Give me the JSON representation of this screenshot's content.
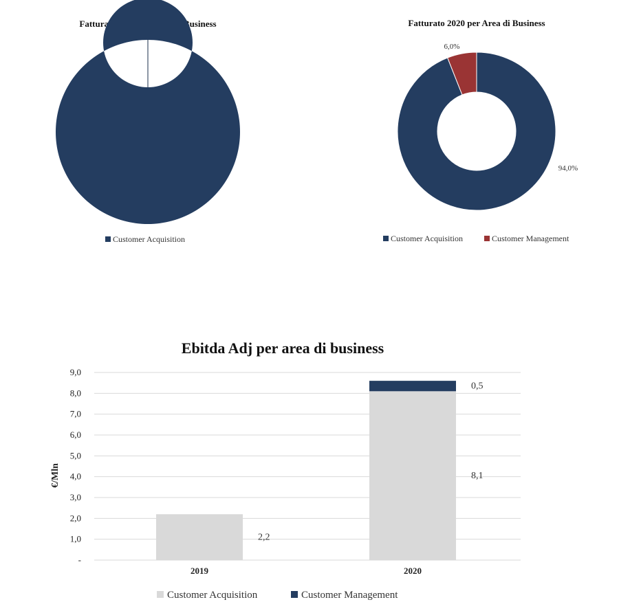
{
  "colors": {
    "acquisition": "#243d60",
    "management": "#9a3434",
    "bar_acquisition": "#d9d9d9",
    "bar_management": "#243d60",
    "grid": "#d9d9d9"
  },
  "chart_data": [
    {
      "type": "pie",
      "title": "Fatturato 2019 per Area di Business",
      "donut": true,
      "slices": [
        {
          "name": "Customer Acquisition",
          "value": 100,
          "label": ""
        }
      ],
      "legend": [
        "Customer Acquisition"
      ],
      "legend_position": "bottom"
    },
    {
      "type": "pie",
      "title": "Fatturato 2020 per Area di Business",
      "donut": true,
      "slices": [
        {
          "name": "Customer Acquisition",
          "value": 94.0,
          "label": "94,0%"
        },
        {
          "name": "Customer Management",
          "value": 6.0,
          "label": "6,0%"
        }
      ],
      "legend": [
        "Customer Acquisition",
        "Customer Management"
      ],
      "legend_position": "bottom"
    },
    {
      "type": "bar",
      "stacked": true,
      "title": "Ebitda Adj per area di business",
      "ylabel": "€/Mln",
      "xlabel": "",
      "categories": [
        "2019",
        "2020"
      ],
      "series": [
        {
          "name": "Customer Acquisition",
          "values": [
            2.2,
            8.1
          ],
          "labels": [
            "2,2",
            "8,1"
          ]
        },
        {
          "name": "Customer Management",
          "values": [
            0,
            0.5
          ],
          "labels": [
            "",
            "0,5"
          ]
        }
      ],
      "ylim": [
        0,
        9
      ],
      "yticks": [
        "-",
        "1,0",
        "2,0",
        "3,0",
        "4,0",
        "5,0",
        "6,0",
        "7,0",
        "8,0",
        "9,0"
      ],
      "grid": true,
      "legend_position": "bottom"
    }
  ]
}
